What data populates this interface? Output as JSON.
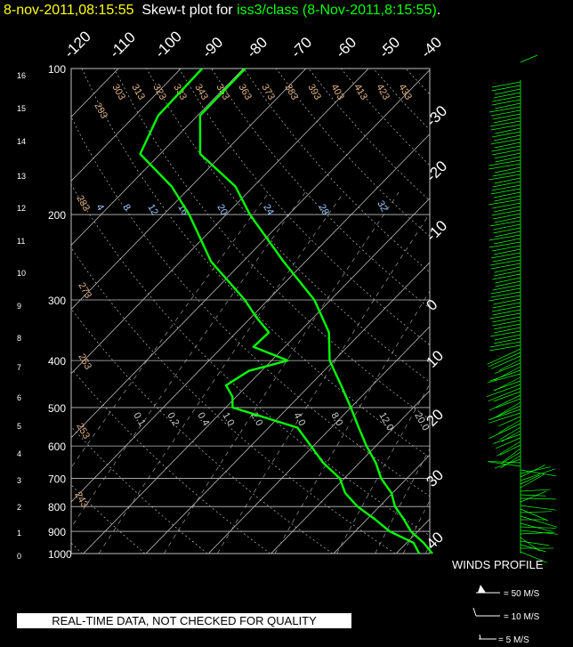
{
  "title": {
    "timestamp": "8-nov-2011,08:15:55",
    "prefix": "Skew-t plot for",
    "source": "iss3/class",
    "obs_time": "(8-Nov-2011,8:15:55)",
    "end": "."
  },
  "quality_note": "REAL-TIME DATA, NOT CHECKED FOR QUALITY",
  "winds": {
    "title": "WINDS PROFILE",
    "keys": [
      "= 50 M/S",
      "= 10 M/S",
      "= 5 M/S"
    ]
  },
  "colors": {
    "trace": "#00ff00",
    "title_time": "#ffff00",
    "grid": "#c0c0c0",
    "isotherm": "#d2d2d2",
    "adiabat_label": "#e0b080",
    "mixing_label": "#9ec8ff"
  },
  "chart_data": {
    "type": "line",
    "title": "Skew-t plot for iss3/class (8-Nov-2011,8:15:55)",
    "pressure_levels": [
      100,
      200,
      300,
      400,
      500,
      600,
      700,
      800,
      900,
      1000
    ],
    "height_km_ticks": [
      "16",
      "15",
      "14",
      "13",
      "12",
      "11",
      "10",
      "9",
      "8",
      "7",
      "6",
      "5",
      "4",
      "3",
      "2",
      "1",
      "0"
    ],
    "temperature_ticks_top": [
      "-120",
      "-110",
      "-100",
      "-90",
      "-80",
      "-70",
      "-60",
      "-50",
      "-40"
    ],
    "temperature_ticks_right": [
      "-30",
      "-20",
      "-10",
      "0",
      "10",
      "20",
      "30",
      "40"
    ],
    "dry_adiabat_labels": [
      "293",
      "303",
      "313",
      "323",
      "333",
      "343",
      "353",
      "363",
      "373",
      "383",
      "393",
      "403",
      "413",
      "423",
      "433",
      "283",
      "273",
      "263",
      "253",
      "243"
    ],
    "mixing_ratio_labels_upper": [
      "4",
      "8",
      "12",
      "16",
      "20",
      "24",
      "28",
      "32"
    ],
    "mixing_ratio_labels_lower": [
      "0.1",
      "0.2",
      "0.4",
      "1.0",
      "2.0",
      "4.0",
      "8.0",
      "12.0",
      "20.0"
    ],
    "series": [
      {
        "name": "temperature",
        "points": [
          [
            100,
            -79.7
          ],
          [
            125,
            -79.6
          ],
          [
            150,
            -73.6
          ],
          [
            175,
            -62.9
          ],
          [
            200,
            -56.2
          ],
          [
            250,
            -43.5
          ],
          [
            300,
            -32.6
          ],
          [
            350,
            -25.2
          ],
          [
            400,
            -20.7
          ],
          [
            450,
            -15.0
          ],
          [
            500,
            -10.0
          ],
          [
            550,
            -5.6
          ],
          [
            600,
            -1.5
          ],
          [
            650,
            2.6
          ],
          [
            700,
            5.9
          ],
          [
            750,
            9.8
          ],
          [
            800,
            12.5
          ],
          [
            850,
            15.9
          ],
          [
            900,
            18.9
          ],
          [
            950,
            22.7
          ],
          [
            1000,
            25.8
          ]
        ]
      },
      {
        "name": "dewpoint",
        "points": [
          [
            100,
            -86.6
          ],
          [
            125,
            -86.3
          ],
          [
            150,
            -83.2
          ],
          [
            175,
            -73.1
          ],
          [
            200,
            -65.9
          ],
          [
            250,
            -55.1
          ],
          [
            300,
            -43.7
          ],
          [
            325,
            -39.3
          ],
          [
            350,
            -34.8
          ],
          [
            375,
            -35.0
          ],
          [
            400,
            -27.4
          ],
          [
            420,
            -32.0
          ],
          [
            450,
            -33.4
          ],
          [
            475,
            -30.6
          ],
          [
            500,
            -28.9
          ],
          [
            550,
            -15.4
          ],
          [
            600,
            -10.4
          ],
          [
            650,
            -5.8
          ],
          [
            700,
            -0.7
          ],
          [
            750,
            2.4
          ],
          [
            800,
            6.5
          ],
          [
            850,
            11.3
          ],
          [
            900,
            15.5
          ],
          [
            950,
            21.1
          ],
          [
            1000,
            23.7
          ]
        ]
      }
    ],
    "xlim": [
      -40,
      50
    ],
    "ylim": [
      1000,
      100
    ],
    "yscale": "log",
    "grid": true
  }
}
